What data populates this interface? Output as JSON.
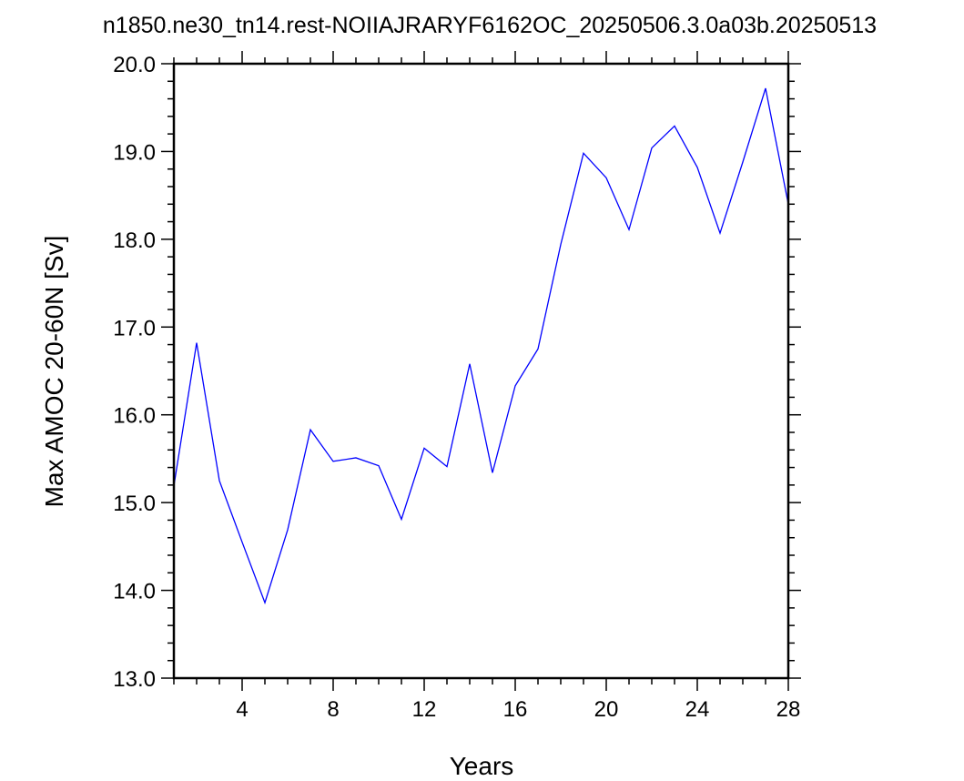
{
  "chart_data": {
    "type": "line",
    "title": "n1850.ne30_tn14.rest-NOIIAJRARYF6162OC_20250506.3.0a03b.20250513",
    "xlabel": "Years",
    "ylabel": "Max AMOC 20-60N [Sv]",
    "xlim": [
      1,
      28
    ],
    "ylim": [
      13.0,
      20.0
    ],
    "xticks": [
      4,
      8,
      12,
      16,
      20,
      24,
      28
    ],
    "xtick_labels": [
      "4",
      "8",
      "12",
      "16",
      "20",
      "24",
      "28"
    ],
    "yticks": [
      13.0,
      14.0,
      15.0,
      16.0,
      17.0,
      18.0,
      19.0,
      20.0
    ],
    "ytick_labels": [
      "13.0",
      "14.0",
      "15.0",
      "16.0",
      "17.0",
      "18.0",
      "19.0",
      "20.0"
    ],
    "grid": false,
    "legend": "none",
    "line_color": "#0000ff",
    "series": [
      {
        "x": [
          1,
          2,
          3,
          4,
          5,
          6,
          7,
          8,
          9,
          10,
          11,
          12,
          13,
          14,
          15,
          16,
          17,
          18,
          19,
          20,
          21,
          22,
          23,
          24,
          25,
          26,
          27,
          28
        ],
        "values": [
          15.19,
          16.82,
          15.25,
          14.55,
          13.86,
          14.69,
          15.83,
          15.47,
          15.51,
          15.42,
          14.81,
          15.62,
          15.41,
          16.58,
          15.34,
          16.33,
          16.75,
          17.94,
          18.98,
          18.7,
          18.11,
          19.04,
          19.29,
          18.82,
          18.07,
          18.88,
          19.72,
          18.4
        ]
      }
    ]
  }
}
